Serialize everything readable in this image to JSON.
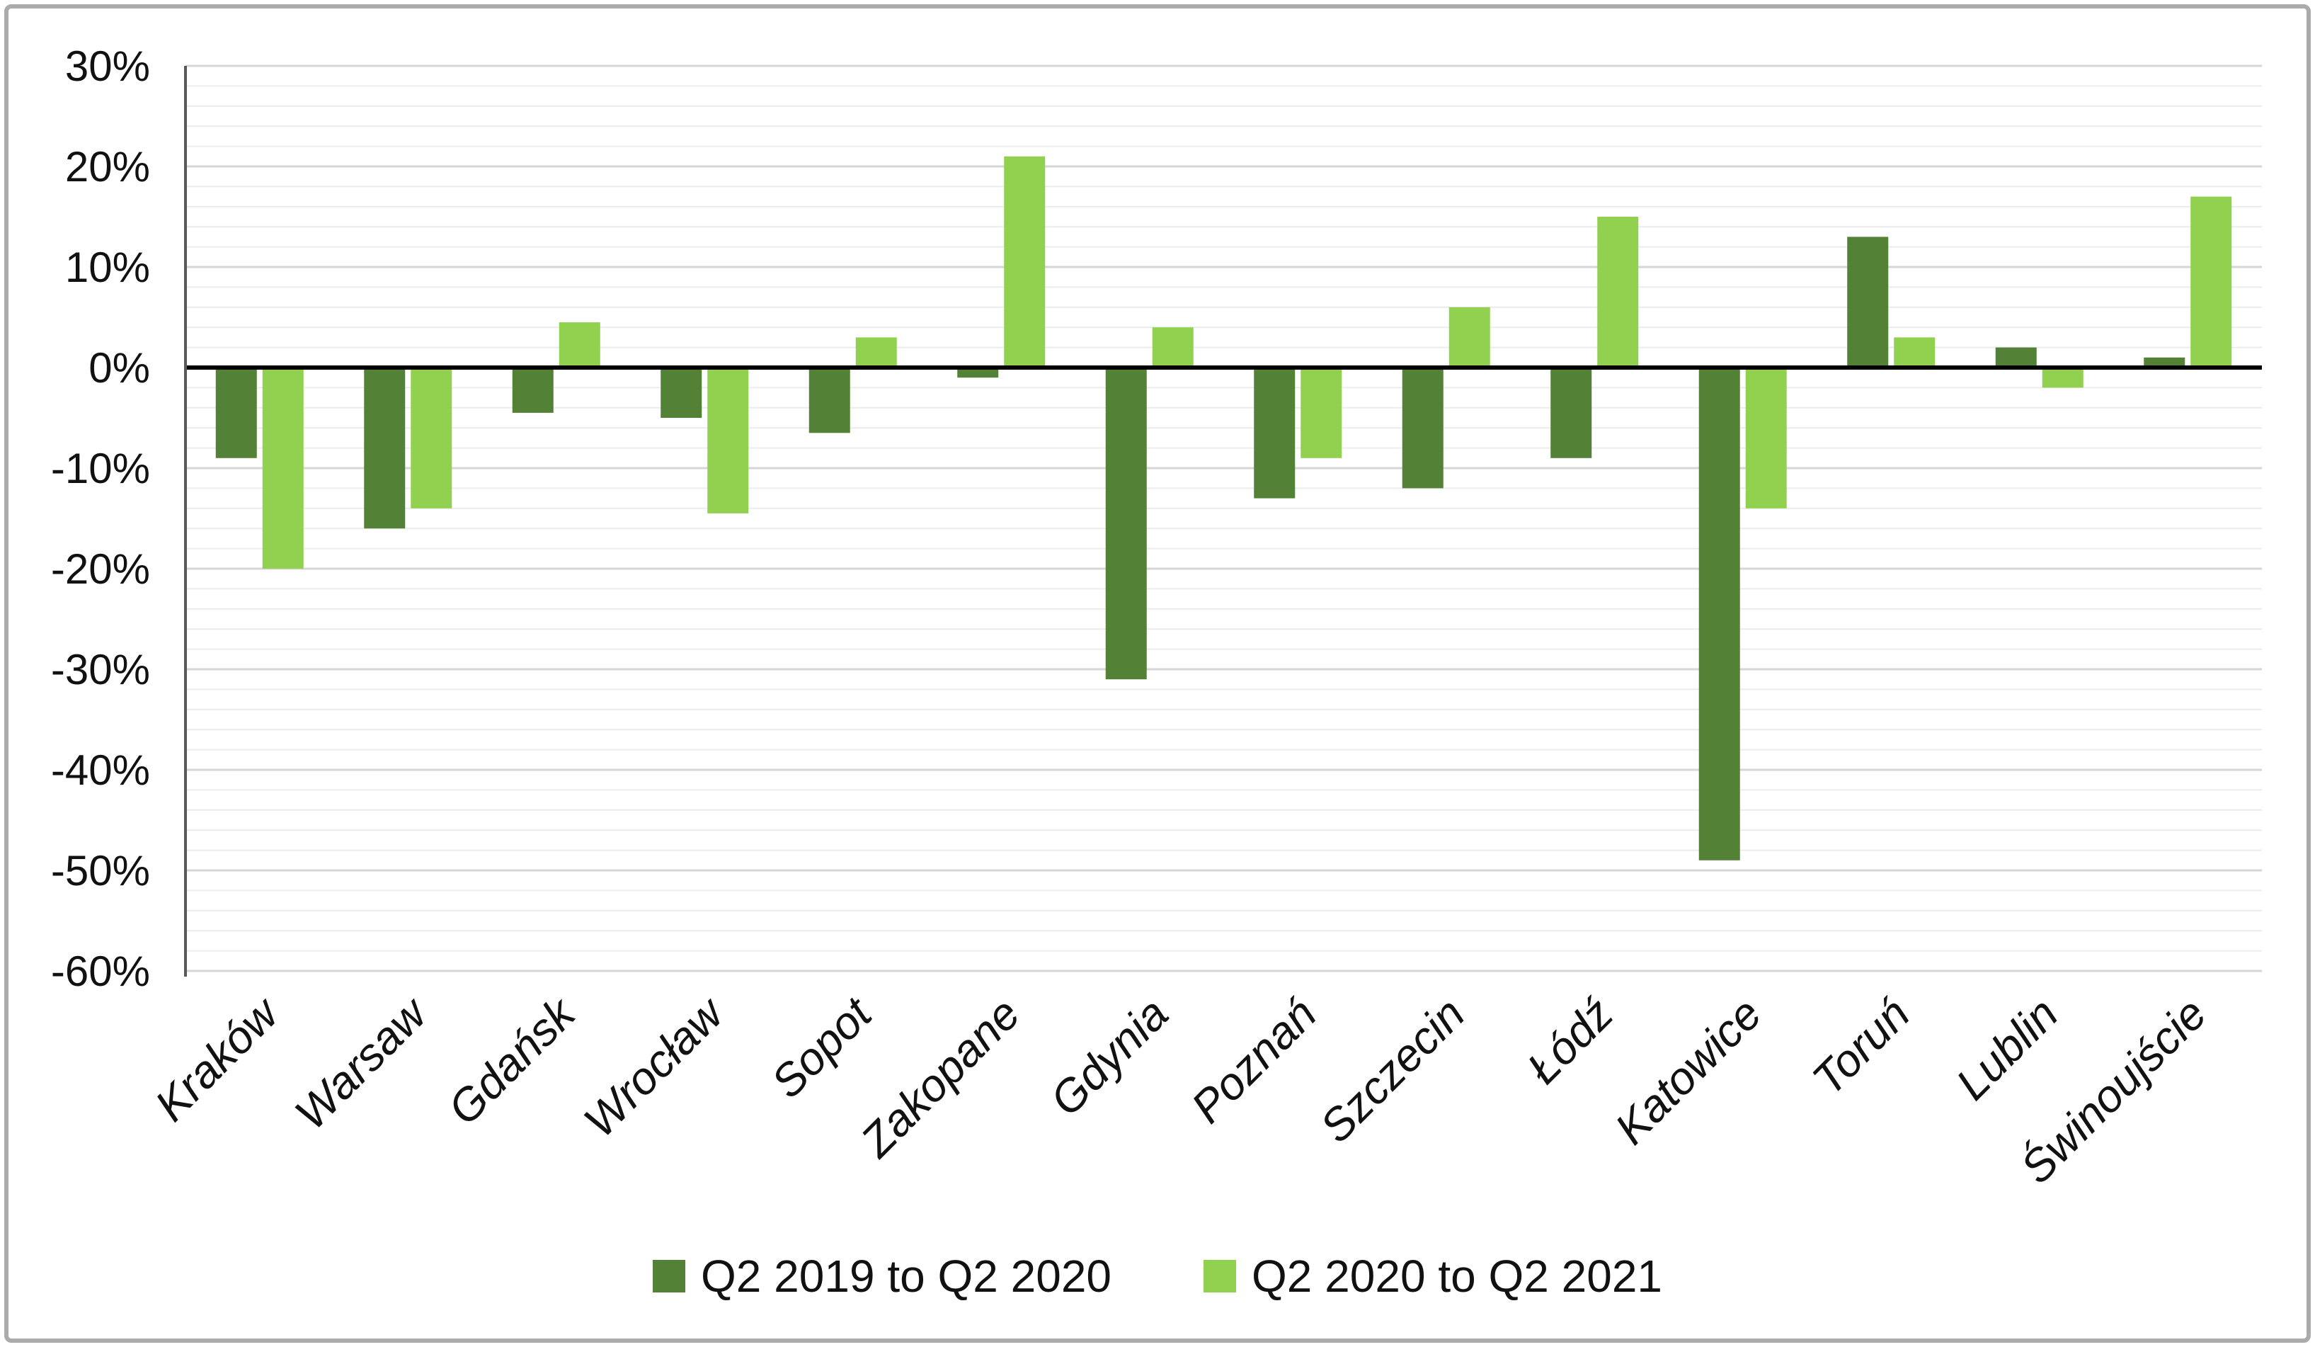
{
  "chart_data": {
    "type": "bar",
    "title": "",
    "categories": [
      "Kraków",
      "Warsaw",
      "Gdańsk",
      "Wrocław",
      "Sopot",
      "Zakopane",
      "Gdynia",
      "Poznań",
      "Szczecin",
      "Łódź",
      "Katowice",
      "Toruń",
      "Lublin",
      "Świnoujście"
    ],
    "series": [
      {
        "name": "Q2 2019 to Q2 2020",
        "color": "#538135",
        "values": [
          -9,
          -16,
          -4.5,
          -5,
          -6.5,
          -1,
          -31,
          -13,
          -12,
          -9,
          -49,
          13,
          2,
          1
        ]
      },
      {
        "name": "Q2 2020 to Q2 2021",
        "color": "#92d050",
        "values": [
          -20,
          -14,
          4.5,
          -14.5,
          3,
          21,
          4,
          -9,
          6,
          15,
          -14,
          3,
          -2,
          17
        ]
      }
    ],
    "ylim": [
      -60,
      30
    ],
    "y_major_step": 10,
    "y_minor_step": 2,
    "y_ticks": [
      "30%",
      "20%",
      "10%",
      "0%",
      "-10%",
      "-20%",
      "-30%",
      "-40%",
      "-50%",
      "-60%"
    ],
    "y_tick_values": [
      30,
      20,
      10,
      0,
      -10,
      -20,
      -30,
      -40,
      -50,
      -60
    ],
    "grid": "horizontal",
    "legend_position": "bottom",
    "x_labels_rotation_deg": -45,
    "x_labels_style": "italic"
  },
  "colors": {
    "series1": "#538135",
    "series2": "#92d050",
    "zero_line": "#000000",
    "axis_line": "#595959",
    "major_grid": "#d6d6d6",
    "minor_grid": "#ececec",
    "text": "#111111",
    "frame_border": "#ababab"
  },
  "legend": {
    "items": [
      {
        "label": "Q2 2019 to Q2 2020",
        "swatch": "#538135"
      },
      {
        "label": "Q2 2020 to Q2 2021",
        "swatch": "#92d050"
      }
    ]
  }
}
